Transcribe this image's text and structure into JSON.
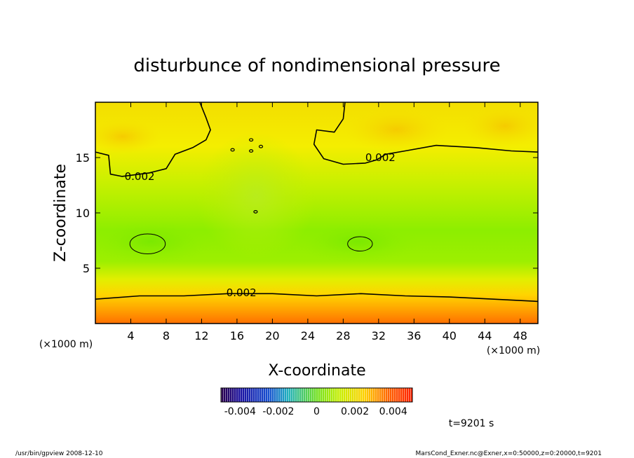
{
  "chart_data": {
    "type": "heatmap",
    "title": "disturbunce of nondimensional pressure",
    "xlabel": "X-coordinate",
    "ylabel": "Z-coordinate",
    "x_unit": "(×1000 m)",
    "y_unit": "(×1000 m)",
    "xlim": [
      0,
      50
    ],
    "ylim": [
      0,
      20
    ],
    "x_ticks": [
      4,
      8,
      12,
      16,
      20,
      24,
      28,
      32,
      36,
      40,
      44,
      48
    ],
    "y_ticks": [
      5,
      10,
      15
    ],
    "contours": [
      {
        "level": 0.002,
        "label": "0.002",
        "points": [
          [
            0,
            2.2
          ],
          [
            5,
            2.5
          ],
          [
            10,
            2.5
          ],
          [
            15,
            2.7
          ],
          [
            20,
            2.7
          ],
          [
            25,
            2.5
          ],
          [
            30,
            2.7
          ],
          [
            35,
            2.5
          ],
          [
            40,
            2.4
          ],
          [
            45,
            2.2
          ],
          [
            50,
            2.0
          ]
        ]
      },
      {
        "level": 0.002,
        "label": "0.002",
        "points": [
          [
            0,
            15.5
          ],
          [
            1.5,
            15.2
          ],
          [
            1.7,
            13.5
          ],
          [
            3,
            13.3
          ],
          [
            6,
            13.6
          ],
          [
            8,
            14.0
          ],
          [
            9,
            15.3
          ],
          [
            11,
            15.9
          ],
          [
            12.5,
            16.6
          ],
          [
            13,
            17.5
          ],
          [
            12.5,
            18.6
          ],
          [
            11.8,
            20
          ]
        ]
      },
      {
        "level": 0.002,
        "label": "0.002",
        "points": [
          [
            28.2,
            20
          ],
          [
            28,
            18.5
          ],
          [
            27,
            17.3
          ],
          [
            25,
            17.5
          ],
          [
            24.7,
            16.2
          ],
          [
            25.8,
            14.9
          ],
          [
            28,
            14.4
          ],
          [
            30.5,
            14.5
          ],
          [
            31.8,
            14.8
          ],
          [
            32.8,
            15.3
          ],
          [
            35,
            15.6
          ],
          [
            38.5,
            16.1
          ],
          [
            43,
            15.9
          ],
          [
            47,
            15.6
          ],
          [
            50,
            15.5
          ]
        ]
      }
    ],
    "closed_contours": [
      {
        "cx": 5.9,
        "cy": 7.2,
        "rx": 2.0,
        "ry": 0.9
      },
      {
        "cx": 29.9,
        "cy": 7.2,
        "rx": 1.4,
        "ry": 0.65
      }
    ],
    "colorbar": {
      "tick_labels": [
        "-0.004",
        "-0.002",
        "0",
        "0.002",
        "0.004"
      ],
      "range": [
        -0.005,
        0.005
      ]
    }
  },
  "time_label": "t=9201 s",
  "footer_left": "/usr/bin/gpview   2008-12-10",
  "footer_right": "MarsCond_Exner.nc@Exner,x=0:50000,z=0:20000,t=9201",
  "colors": {
    "low": "#3a00a0",
    "mid": "#88ef00",
    "high": "#ff3000",
    "field_top": "#f6e800",
    "field_bottom": "#ff7000"
  }
}
